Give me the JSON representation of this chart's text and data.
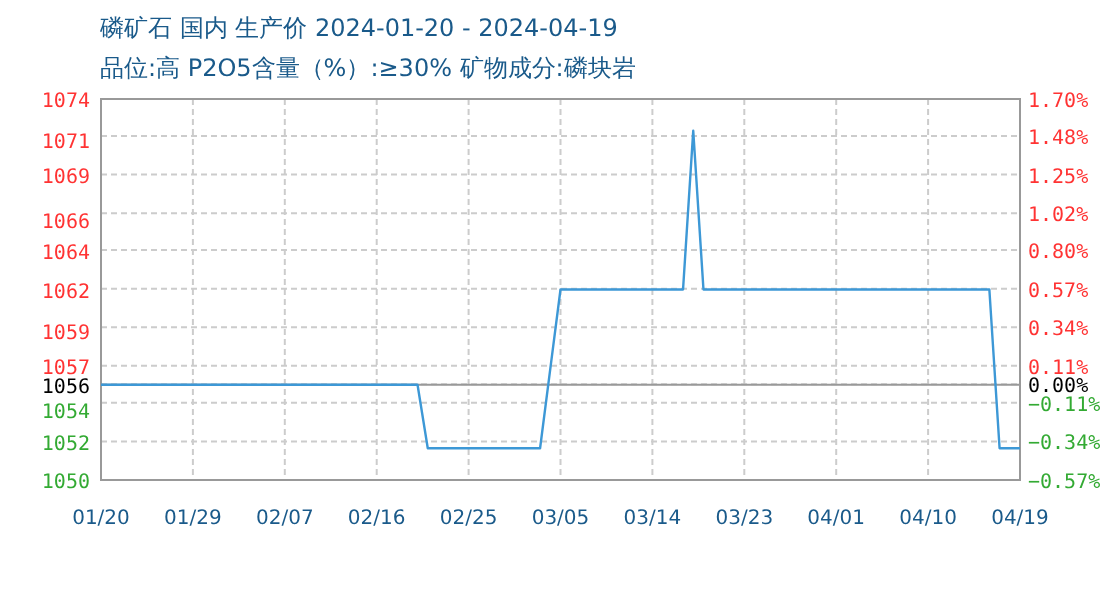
{
  "chart_data": {
    "type": "line",
    "title": "磷矿石 国内 生产价 2024-01-20 - 2024-04-19",
    "subtitle": "品位:高 P2O5含量（%）:≥30% 矿物成分:磷块岩",
    "x": [
      "2024-01-20",
      "2024-02-20",
      "2024-02-21",
      "2024-03-03",
      "2024-03-04",
      "2024-03-05",
      "2024-03-17",
      "2024-03-18",
      "2024-03-19",
      "2024-04-16",
      "2024-04-17",
      "2024-04-19"
    ],
    "series": [
      {
        "color": "#3d98d6",
        "values": [
          1056,
          1056,
          1052,
          1052,
          1057,
          1062,
          1062,
          1072,
          1062,
          1062,
          1052,
          1052
        ]
      }
    ],
    "xlim": [
      "2024-01-20",
      "2024-04-19"
    ],
    "xticks": [
      {
        "value": "2024-01-20",
        "label": "01/20"
      },
      {
        "value": "2024-01-29",
        "label": "01/29"
      },
      {
        "value": "2024-02-07",
        "label": "02/07"
      },
      {
        "value": "2024-02-16",
        "label": "02/16"
      },
      {
        "value": "2024-02-25",
        "label": "02/25"
      },
      {
        "value": "2024-03-05",
        "label": "03/05"
      },
      {
        "value": "2024-03-14",
        "label": "03/14"
      },
      {
        "value": "2024-03-23",
        "label": "03/23"
      },
      {
        "value": "2024-04-01",
        "label": "04/01"
      },
      {
        "value": "2024-04-10",
        "label": "04/10"
      },
      {
        "value": "2024-04-19",
        "label": "04/19"
      }
    ],
    "ylim": [
      1050,
      1074
    ],
    "yticks": [
      1074,
      {
        "value": 1071.4,
        "label": "1071"
      },
      {
        "value": 1069.2,
        "label": "1069"
      },
      {
        "value": 1066.4,
        "label": "1066"
      },
      {
        "value": 1064.4,
        "label": "1064"
      },
      1062,
      {
        "value": 1059.4,
        "label": "1059"
      },
      {
        "value": 1057.2,
        "label": "1057"
      },
      {
        "value": 1054.4,
        "label": "1054"
      },
      {
        "value": 1052.4,
        "label": "1052"
      },
      1050
    ],
    "y2lim": [
      -0.57,
      1.7
    ],
    "y2ticks": [
      {
        "value": 1.7,
        "label": "1.70%"
      },
      {
        "value": 1.48,
        "label": "1.48%"
      },
      {
        "value": 1.25,
        "label": "1.25%"
      },
      {
        "value": 1.02,
        "label": "1.02%"
      },
      {
        "value": 0.8,
        "label": "0.80%"
      },
      {
        "value": 0.57,
        "label": "0.57%"
      },
      {
        "value": 0.34,
        "label": "0.34%"
      },
      {
        "value": 0.11,
        "label": "0.11%"
      },
      {
        "value": 0,
        "label": "0.00%"
      },
      {
        "value": -0.11,
        "label": "−0.11%"
      },
      {
        "value": -0.34,
        "label": "−0.34%"
      },
      {
        "value": -0.57,
        "label": "−0.57%"
      }
    ],
    "ref_lines": [
      {
        "axis": "y",
        "value": 1056,
        "label": "1056",
        "color": "#999999",
        "line_style": "solid"
      }
    ],
    "grid": true,
    "marker": "none",
    "line_style": "solid"
  }
}
